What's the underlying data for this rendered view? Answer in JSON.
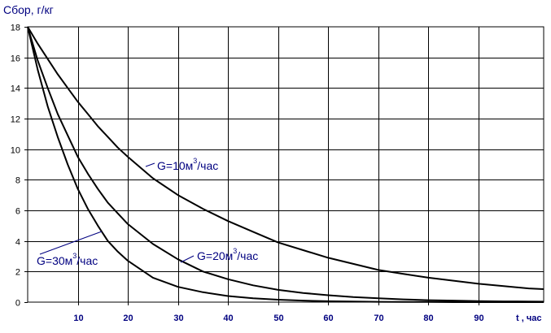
{
  "chart_data": {
    "type": "line",
    "title": "",
    "ylabel": "Сбор, г/кг",
    "xlabel": "t , час",
    "xlim": [
      0,
      103
    ],
    "ylim": [
      0,
      18
    ],
    "x_ticks": [
      10,
      20,
      30,
      40,
      50,
      60,
      70,
      80,
      90
    ],
    "y_ticks": [
      0,
      2,
      4,
      6,
      8,
      10,
      12,
      14,
      16,
      18
    ],
    "grid": true,
    "colors": {
      "line": "#000000",
      "text": "#000080",
      "grid": "#000000"
    },
    "x": [
      0,
      2,
      4,
      6,
      8,
      10,
      12,
      14,
      16,
      18,
      20,
      25,
      30,
      35,
      40,
      45,
      50,
      55,
      60,
      65,
      70,
      75,
      80,
      85,
      90,
      95,
      100,
      103
    ],
    "series": [
      {
        "label": "G=10м³/час",
        "label_main": "G=10м",
        "label_sup": "3",
        "label_tail": "/час",
        "values": [
          18,
          16.9,
          15.9,
          14.9,
          14.0,
          13.1,
          12.3,
          11.5,
          10.8,
          10.1,
          9.5,
          8.1,
          7.0,
          6.1,
          5.3,
          4.6,
          3.9,
          3.4,
          2.9,
          2.5,
          2.1,
          1.85,
          1.6,
          1.4,
          1.2,
          1.05,
          0.9,
          0.85
        ]
      },
      {
        "label": "G=20м³/час",
        "label_main": "G=20м",
        "label_sup": "3",
        "label_tail": "/час",
        "values": [
          18,
          15.8,
          14.0,
          12.3,
          10.9,
          9.5,
          8.4,
          7.4,
          6.5,
          5.8,
          5.1,
          3.8,
          2.8,
          2.0,
          1.5,
          1.1,
          0.8,
          0.6,
          0.45,
          0.33,
          0.25,
          0.18,
          0.13,
          0.1,
          0.07,
          0.05,
          0.04,
          0.03
        ]
      },
      {
        "label": "G=30м³/час",
        "label_main": "G=30м",
        "label_sup": "3",
        "label_tail": "/час",
        "values": [
          18,
          15.2,
          12.8,
          10.8,
          9.0,
          7.4,
          6.1,
          5.0,
          4.0,
          3.3,
          2.7,
          1.6,
          1.0,
          0.65,
          0.4,
          0.25,
          0.16,
          0.1,
          0.06,
          0.04,
          0.02,
          0.01,
          0.01,
          0.0,
          0.0,
          0.0,
          0.0,
          0.0
        ]
      }
    ]
  }
}
